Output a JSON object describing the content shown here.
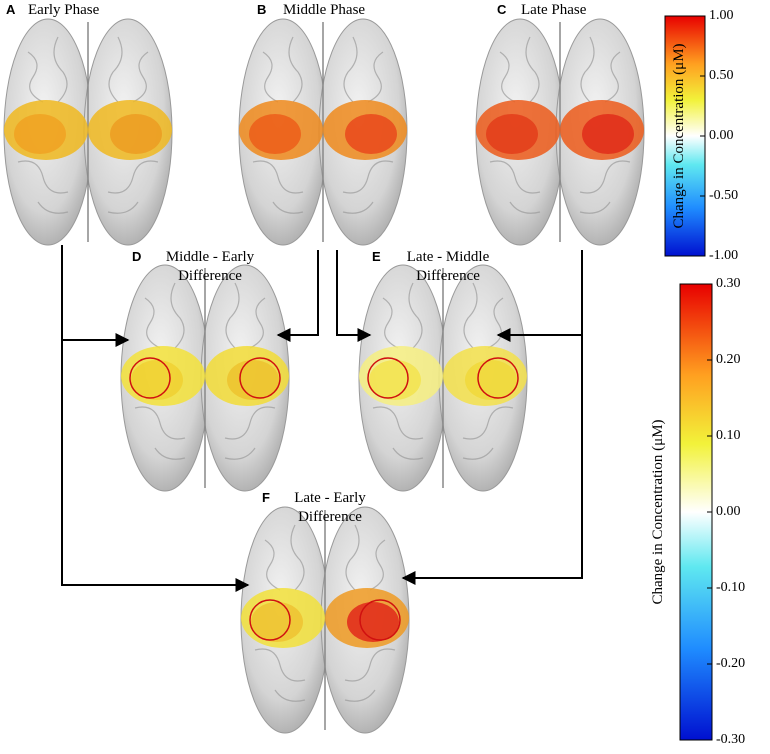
{
  "panels": [
    {
      "letter": "A",
      "title": [
        "Early Phase"
      ]
    },
    {
      "letter": "B",
      "title": [
        "Middle Phase"
      ]
    },
    {
      "letter": "C",
      "title": [
        "Late Phase"
      ]
    },
    {
      "letter": "D",
      "title": [
        "Middle - Early",
        "Difference"
      ]
    },
    {
      "letter": "E",
      "title": [
        "Late - Middle",
        "Difference"
      ]
    },
    {
      "letter": "F",
      "title": [
        "Late - Early",
        "Difference"
      ]
    }
  ],
  "colorbars": [
    {
      "label": "Change in Concentration (μM)",
      "lim": [
        -1,
        1
      ],
      "ticks": [
        {
          "value": 1,
          "label": "1.00"
        },
        {
          "value": 0.5,
          "label": "0.50"
        },
        {
          "value": 0,
          "label": "0.00"
        },
        {
          "value": -0.5,
          "label": "-0.50"
        },
        {
          "value": -1,
          "label": "-1.00"
        }
      ]
    },
    {
      "label": "Change in Concentration (μM)",
      "lim": [
        -0.3,
        0.3
      ],
      "ticks": [
        {
          "value": 0.3,
          "label": "0.30"
        },
        {
          "value": 0.2,
          "label": "0.20"
        },
        {
          "value": 0.1,
          "label": "0.10"
        },
        {
          "value": 0,
          "label": "0.00"
        },
        {
          "value": -0.1,
          "label": "-0.10"
        },
        {
          "value": -0.2,
          "label": "-0.20"
        },
        {
          "value": -0.3,
          "label": "-0.30"
        }
      ]
    }
  ]
}
